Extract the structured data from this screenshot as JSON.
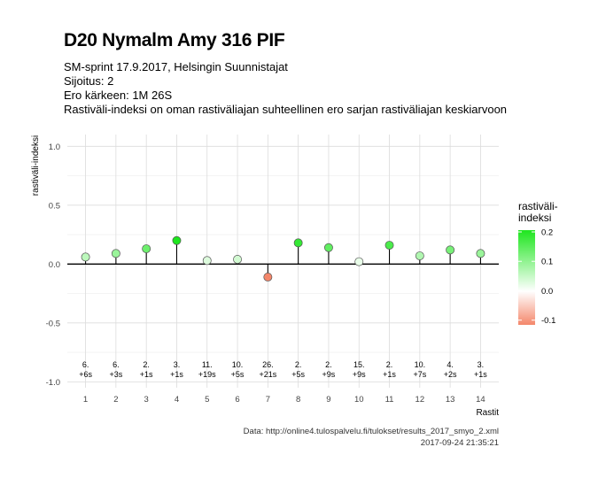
{
  "header": {
    "title": "D20 Nymalm Amy 316 PIF",
    "subtitle_lines": [
      "SM-sprint 17.9.2017, Helsingin Suunnistajat",
      "Sijoitus: 2",
      "Ero kärkeen: 1M 26S",
      "Rastiväli-indeksi on oman rastiväliajan suhteellinen ero sarjan rastiväliajan keskiarvoon"
    ]
  },
  "caption": {
    "line1": "Data: http://online4.tulospalvelu.fi/tulokset/results_2017_smyo_2.xml",
    "line2": "2017-09-24 21:35:21"
  },
  "legend": {
    "title_line1": "rastiväli-",
    "title_line2": "indeksi",
    "ticks": [
      "0.2",
      "0.1",
      "0.0",
      "-0.1"
    ],
    "tick_values": [
      0.2,
      0.1,
      0.0,
      -0.1
    ],
    "range": [
      -0.11,
      0.2
    ],
    "color_low": "#f4876b",
    "color_mid": "#ffffff",
    "color_high": "#1ee61e"
  },
  "chart_data": {
    "type": "scatter",
    "xlabel": "Rastit",
    "ylabel": "rastiväli-indeksi",
    "ylim": [
      -1.05,
      1.1
    ],
    "xlim": [
      0.4,
      14.6
    ],
    "grid": true,
    "y_ticks": [
      1.0,
      0.5,
      0.0,
      -0.5,
      -1.0
    ],
    "y_tick_labels": [
      "1.0",
      "0.5",
      "0.0",
      "-0.5",
      "-1.0"
    ],
    "x": [
      1,
      2,
      3,
      4,
      5,
      6,
      7,
      8,
      9,
      10,
      11,
      12,
      13,
      14
    ],
    "values": [
      0.06,
      0.09,
      0.13,
      0.2,
      0.03,
      0.04,
      -0.11,
      0.18,
      0.14,
      0.02,
      0.16,
      0.07,
      0.12,
      0.09
    ],
    "rank_labels": [
      "6.",
      "6.",
      "2.",
      "3.",
      "11.",
      "10.",
      "26.",
      "2.",
      "2.",
      "15.",
      "2.",
      "10.",
      "4.",
      "3."
    ],
    "diff_labels": [
      "+6s",
      "+3s",
      "+1s",
      "+1s",
      "+19s",
      "+5s",
      "+21s",
      "+5s",
      "+9s",
      "+9s",
      "+1s",
      "+7s",
      "+2s",
      "+1s"
    ]
  }
}
